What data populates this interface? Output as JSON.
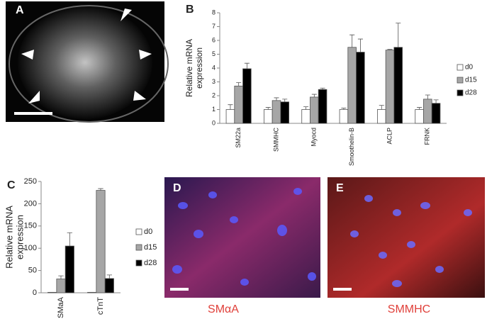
{
  "figure": {
    "panel_labels": [
      "A",
      "B",
      "C",
      "D",
      "E"
    ],
    "captions": [
      "SMαA",
      "SMMHC"
    ]
  },
  "chart_data": [
    {
      "type": "bar",
      "ylabel": [
        "Relative mRNA",
        "expression"
      ],
      "categories": [
        "SM22a",
        "SMMHC",
        "Myocd",
        "Smoothelin-B",
        "ACLP",
        "FRNK"
      ],
      "series": [
        {
          "name": "d0",
          "color": "#ffffff",
          "values": [
            1,
            1,
            1,
            1,
            1,
            1
          ],
          "errors": [
            0.35,
            0.15,
            0.2,
            0.1,
            0.3,
            0.15
          ]
        },
        {
          "name": "d15",
          "color": "#a6a6a6",
          "values": [
            2.7,
            1.65,
            1.9,
            5.5,
            5.3,
            1.75
          ],
          "errors": [
            0.25,
            0.2,
            0.2,
            0.9,
            0.05,
            0.3
          ]
        },
        {
          "name": "d28",
          "color": "#000000",
          "values": [
            3.95,
            1.55,
            2.45,
            5.15,
            5.5,
            1.45
          ],
          "errors": [
            0.4,
            0.2,
            0.1,
            0.95,
            1.75,
            0.25
          ]
        }
      ],
      "ylim": [
        0,
        8
      ],
      "yticks": [
        0,
        1,
        2,
        3,
        4,
        5,
        6,
        7,
        8
      ]
    },
    {
      "type": "bar",
      "ylabel": [
        "Relative mRNA",
        "expression"
      ],
      "categories": [
        "SMaA",
        "cTnT"
      ],
      "series": [
        {
          "name": "d0",
          "color": "#ffffff",
          "values": [
            1,
            1
          ],
          "errors": [
            0,
            0
          ]
        },
        {
          "name": "d15",
          "color": "#a6a6a6",
          "values": [
            31,
            230
          ],
          "errors": [
            7,
            4
          ]
        },
        {
          "name": "d28",
          "color": "#000000",
          "values": [
            105,
            32
          ],
          "errors": [
            30,
            8
          ]
        }
      ],
      "ylim": [
        0,
        250
      ],
      "yticks": [
        0,
        50,
        100,
        150,
        200,
        250
      ]
    }
  ]
}
